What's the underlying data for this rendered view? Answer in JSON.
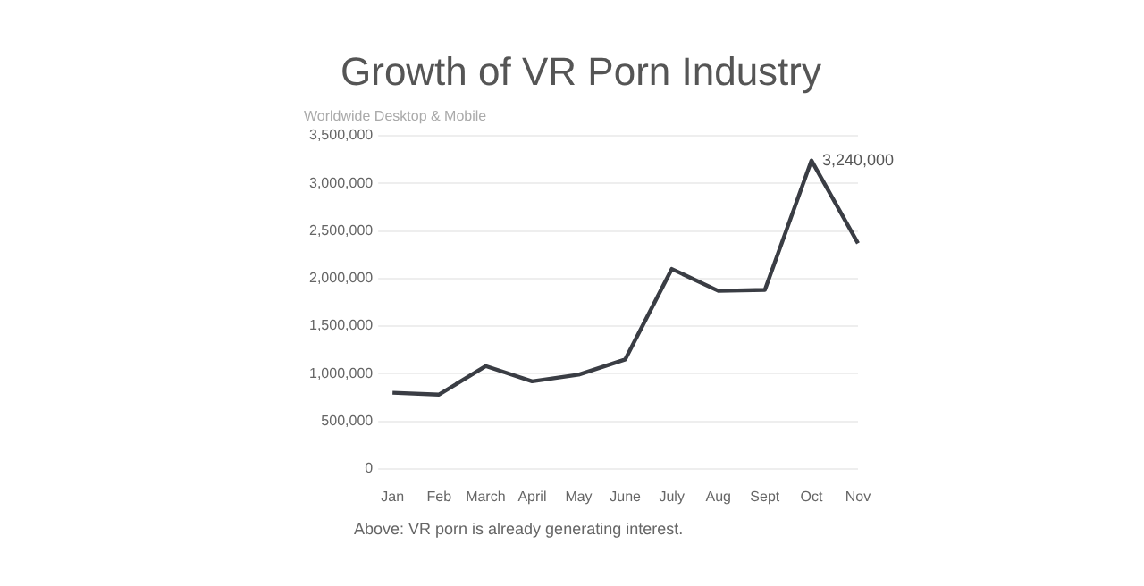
{
  "chart_data": {
    "type": "line",
    "title": "Growth of VR Porn Industry",
    "subtitle": "Worldwide Desktop & Mobile",
    "categories": [
      "Jan",
      "Feb",
      "March",
      "April",
      "May",
      "June",
      "July",
      "Aug",
      "Sept",
      "Oct",
      "Nov"
    ],
    "series": [
      {
        "color": "#3a3d44",
        "values": [
          800000,
          780000,
          1080000,
          920000,
          990000,
          1150000,
          2100000,
          1870000,
          1880000,
          3240000,
          2370000
        ]
      }
    ],
    "ylim": [
      0,
      3500000
    ],
    "yticks": [
      0,
      {
        "value": 500000,
        "label": "500,000"
      },
      {
        "value": 1000000,
        "label": "1,000,000"
      },
      {
        "value": 1500000,
        "label": "1,500,000"
      },
      {
        "value": 2000000,
        "label": "2,000,000"
      },
      {
        "value": 2500000,
        "label": "2,500,000"
      },
      {
        "value": 3000000,
        "label": "3,000,000"
      },
      {
        "value": 3500000,
        "label": "3,500,000"
      }
    ],
    "grid": "y",
    "legend": false,
    "marker": "none",
    "line_style": "solid",
    "annotations": [
      {
        "text": "3,240,000",
        "x": "Oct",
        "y": 3240000
      },
      "Above: VR porn is already generating interest."
    ]
  }
}
